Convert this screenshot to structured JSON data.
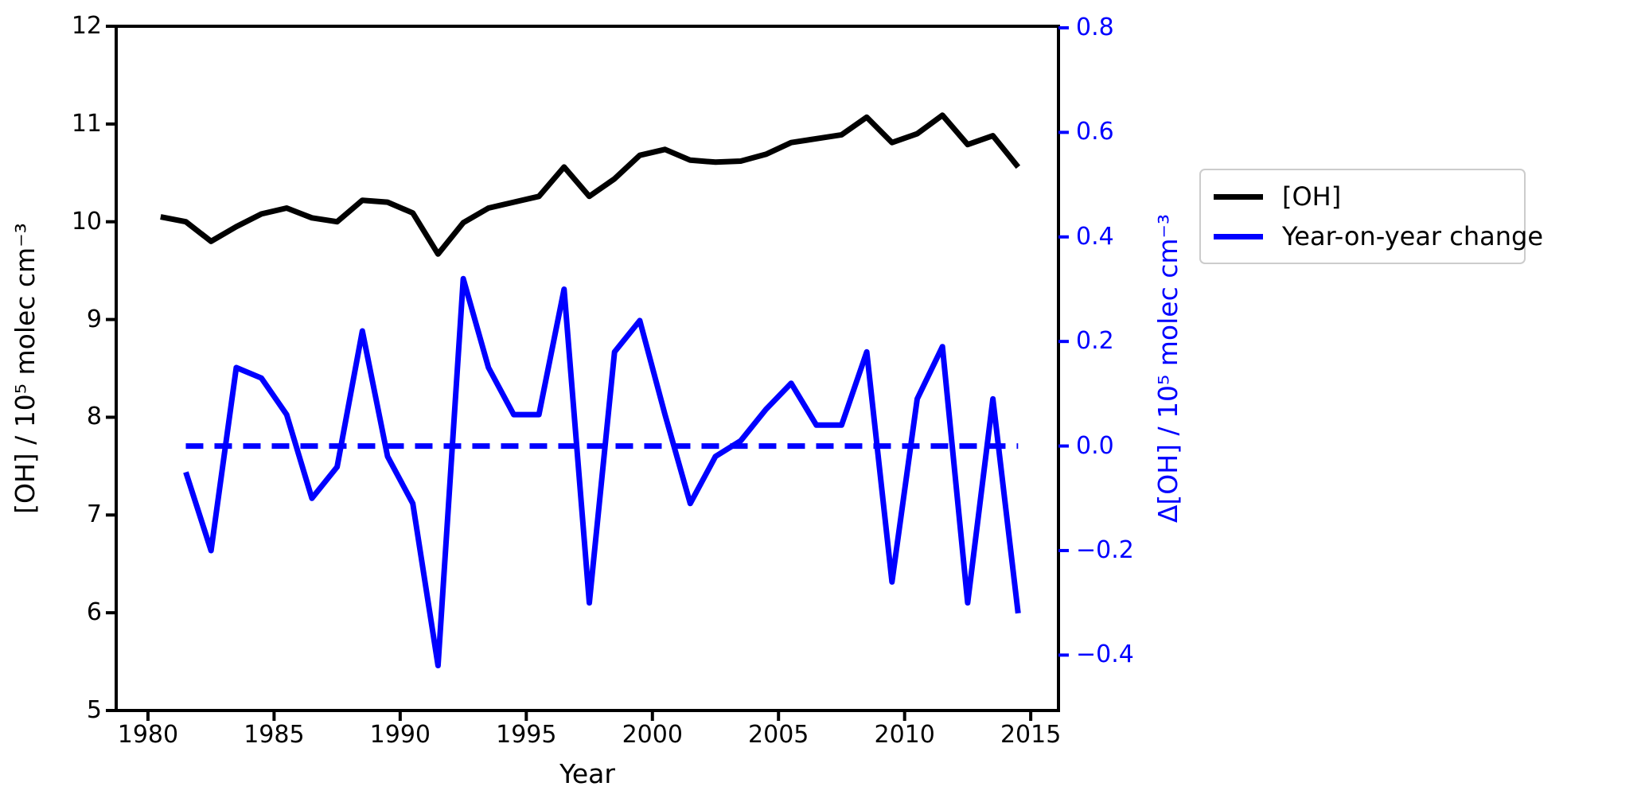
{
  "figure_title": "",
  "chart_data": {
    "type": "line",
    "title": "",
    "xlabel": "Year",
    "ylabel_left": "[OH] / 10⁵ molec cm⁻³",
    "ylabel_right": "Δ[OH] / 10⁵ molec cm⁻³",
    "axis_color_left": "#000000",
    "axis_color_right": "#0000ff",
    "grid": false,
    "xlim": [
      1978.74,
      2016.1
    ],
    "ylim_left": [
      5,
      12
    ],
    "ylim_right": [
      -0.506,
      0.803
    ],
    "x_ticks": {
      "values": [
        1980,
        1985,
        1990,
        1995,
        2000,
        2005,
        2010,
        2015
      ],
      "labels": [
        "1980",
        "1985",
        "1990",
        "1995",
        "2000",
        "2005",
        "2010",
        "2015"
      ]
    },
    "y_ticks_left": {
      "values": [
        12,
        11,
        10,
        9,
        8,
        7,
        6,
        5
      ],
      "labels": [
        "12",
        "11",
        "10",
        "9",
        "8",
        "7",
        "6",
        "5"
      ]
    },
    "y_ticks_right": {
      "values": [
        0.8,
        0.6,
        0.4,
        0.2,
        0.0,
        -0.2,
        -0.4
      ],
      "labels": [
        "0.8",
        "0.6",
        "0.4",
        "0.2",
        "0.0",
        "−0.2",
        "−0.4"
      ]
    },
    "x": [
      1980.5,
      1981.5,
      1982.5,
      1983.5,
      1984.5,
      1985.5,
      1986.5,
      1987.5,
      1988.5,
      1989.5,
      1990.5,
      1991.5,
      1992.5,
      1993.5,
      1994.5,
      1995.5,
      1996.5,
      1997.5,
      1998.5,
      1999.5,
      2000.5,
      2001.5,
      2002.5,
      2003.5,
      2004.5,
      2005.5,
      2006.5,
      2007.5,
      2008.5,
      2009.5,
      2010.5,
      2011.5,
      2012.5,
      2013.5,
      2014.5
    ],
    "series": [
      {
        "name": "[OH]",
        "axis": "left",
        "color": "#000000",
        "style": "solid",
        "values": [
          10.05,
          10.0,
          9.8,
          9.95,
          10.08,
          10.14,
          10.04,
          10.0,
          10.22,
          10.2,
          10.09,
          9.67,
          9.99,
          10.14,
          10.2,
          10.26,
          10.56,
          10.26,
          10.44,
          10.68,
          10.74,
          10.63,
          10.61,
          10.62,
          10.69,
          10.81,
          10.85,
          10.89,
          11.07,
          10.81,
          10.9,
          11.09,
          10.79,
          10.88,
          10.56
        ]
      },
      {
        "name": "Year-on-year change",
        "axis": "right",
        "color": "#0000ff",
        "style": "solid",
        "values": [
          null,
          -0.05,
          -0.2,
          0.15,
          0.13,
          0.06,
          -0.1,
          -0.04,
          0.22,
          -0.02,
          -0.11,
          -0.42,
          0.32,
          0.15,
          0.06,
          0.06,
          0.3,
          -0.3,
          0.18,
          0.24,
          0.06,
          -0.11,
          -0.02,
          0.01,
          0.07,
          0.12,
          0.04,
          0.04,
          0.18,
          -0.26,
          0.09,
          0.19,
          -0.3,
          0.09,
          -0.32
        ]
      }
    ],
    "reference_line": {
      "axis": "right",
      "value": 0.0,
      "x_start": 1981.5,
      "x_end": 2014.5,
      "style": "dashed",
      "color": "#0000ff"
    },
    "legend": {
      "position": "outside-right",
      "entries": [
        {
          "label": "[OH]",
          "color": "#000000"
        },
        {
          "label": "Year-on-year change",
          "color": "#0000ff"
        }
      ]
    }
  }
}
